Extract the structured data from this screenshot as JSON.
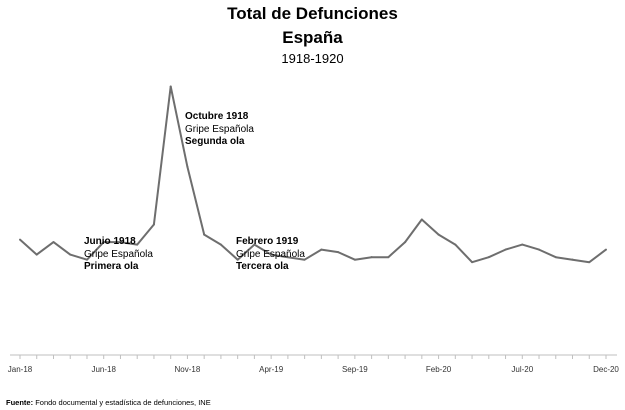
{
  "chart_data": {
    "type": "line",
    "title": "Total de Defunciones",
    "subtitle": "España",
    "period": "1918-1920",
    "x": [
      "Jan-18",
      "Feb-18",
      "Mar-18",
      "Apr-18",
      "May-18",
      "Jun-18",
      "Jul-18",
      "Aug-18",
      "Sep-18",
      "Oct-18",
      "Nov-18",
      "Dec-18",
      "Jan-19",
      "Feb-19",
      "Mar-19",
      "Apr-19",
      "May-19",
      "Jun-19",
      "Jul-19",
      "Aug-19",
      "Sep-19",
      "Oct-19",
      "Nov-19",
      "Dec-19",
      "Jan-20",
      "Feb-20",
      "Mar-20",
      "Apr-20",
      "May-20",
      "Jun-20",
      "Jul-20",
      "Aug-20",
      "Sep-20",
      "Oct-20",
      "Nov-20",
      "Dec-20"
    ],
    "values": [
      46,
      40,
      45,
      40,
      38,
      45,
      45,
      44,
      52,
      107,
      75,
      48,
      44,
      38,
      44,
      40,
      39,
      38,
      42,
      41,
      38,
      39,
      39,
      45,
      54,
      48,
      44,
      37,
      39,
      42,
      44,
      42,
      39,
      38,
      37,
      42
    ],
    "tick_labels": [
      "Jan-18",
      "Jun-18",
      "Nov-18",
      "Apr-19",
      "Sep-19",
      "Feb-20",
      "Jul-20",
      "Dec-20"
    ],
    "xlabel": "",
    "ylabel": "",
    "ylim": [
      0,
      112
    ],
    "grid": false,
    "line_color": "#6e6e6e",
    "annotations": [
      {
        "key": "primera",
        "date": "Junio 1918",
        "text": "Gripe Española",
        "wave": "Primera ola"
      },
      {
        "key": "segunda",
        "date": "Octubre 1918",
        "text": "Gripe Española",
        "wave": "Segunda ola"
      },
      {
        "key": "tercera",
        "date": "Febrero 1919",
        "text": "Gripe Española",
        "wave": "Tercera ola"
      }
    ]
  },
  "source": {
    "label": "Fuente:",
    "text": "Fondo documental y estadística de defunciones, INE"
  }
}
